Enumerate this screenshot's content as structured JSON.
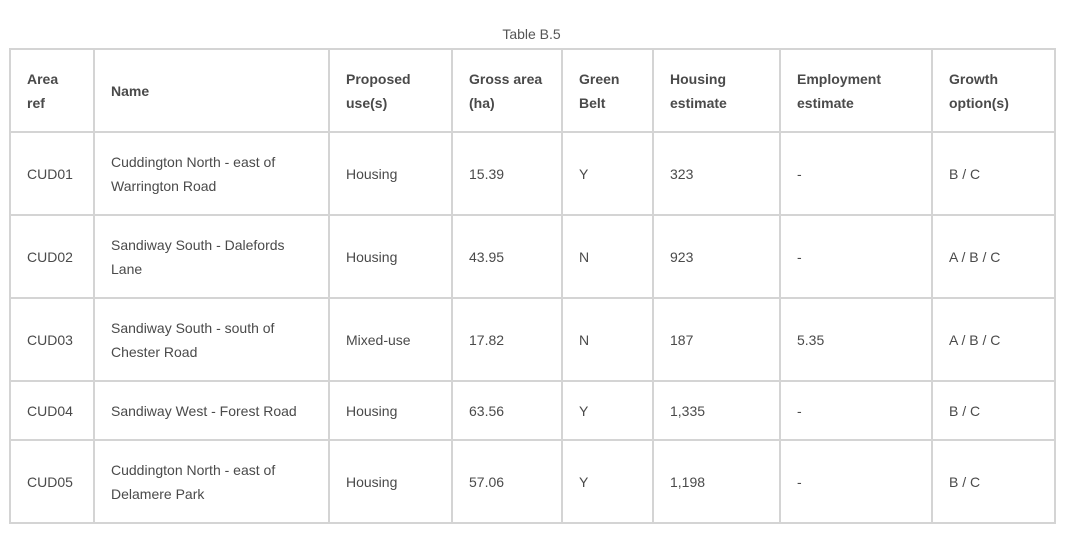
{
  "caption": "Table B.5",
  "headers": {
    "area_ref_1": "Area",
    "area_ref_2": "ref",
    "name": "Name",
    "proposed_1": "Proposed",
    "proposed_2": "use(s)",
    "gross_1": "Gross area",
    "gross_2": "(ha)",
    "green_1": "Green",
    "green_2": "Belt",
    "housing_1": "Housing",
    "housing_2": "estimate",
    "employment_1": "Employment",
    "employment_2": "estimate",
    "growth_1": "Growth",
    "growth_2": "option(s)"
  },
  "rows": [
    {
      "ref": "CUD01",
      "name_1": "Cuddington North - east of",
      "name_2": "Warrington Road",
      "use": "Housing",
      "gross": "15.39",
      "green": "Y",
      "housing": "323",
      "employment": "-",
      "growth": "B / C"
    },
    {
      "ref": "CUD02",
      "name_1": "Sandiway South - Dalefords",
      "name_2": "Lane",
      "use": "Housing",
      "gross": "43.95",
      "green": "N",
      "housing": "923",
      "employment": "-",
      "growth": "A / B / C"
    },
    {
      "ref": "CUD03",
      "name_1": "Sandiway South - south of",
      "name_2": "Chester Road",
      "use": "Mixed-use",
      "gross": "17.82",
      "green": "N",
      "housing": "187",
      "employment": "5.35",
      "growth": "A / B / C"
    },
    {
      "ref": "CUD04",
      "name_1": "Sandiway West - Forest Road",
      "name_2": "",
      "use": "Housing",
      "gross": "63.56",
      "green": "Y",
      "housing": "1,335",
      "employment": "-",
      "growth": "B / C"
    },
    {
      "ref": "CUD05",
      "name_1": "Cuddington North - east of",
      "name_2": "Delamere Park",
      "use": "Housing",
      "gross": "57.06",
      "green": "Y",
      "housing": "1,198",
      "employment": "-",
      "growth": "B / C"
    }
  ]
}
